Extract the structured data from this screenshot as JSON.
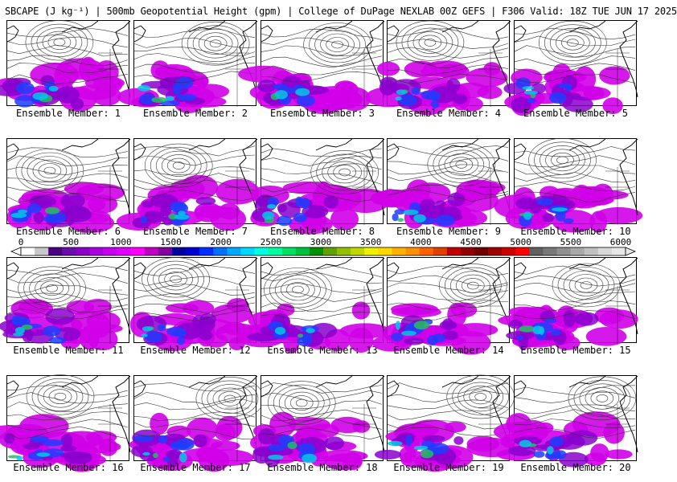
{
  "header": {
    "title": "SBCAPE (J kg⁻¹) | 500mb Geopotential Height (gpm) | College of DuPage NEXLAB 00Z GEFS | F306 Valid: 18Z TUE JUN 17 2025"
  },
  "colorbar": {
    "ticks": [
      "0",
      "500",
      "1000",
      "1500",
      "2000",
      "2500",
      "3000",
      "3500",
      "4000",
      "4500",
      "5000",
      "5500",
      "6000"
    ],
    "colors": [
      "#ffffff",
      "#c8c8c8",
      "#4b0082",
      "#6a0dad",
      "#8b00c8",
      "#a800e0",
      "#c800f0",
      "#e000ff",
      "#ff00ff",
      "#c000c0",
      "#8000a0",
      "#0000a0",
      "#0000d0",
      "#0030ff",
      "#0070ff",
      "#00a8ff",
      "#00d8ff",
      "#00ffe0",
      "#00ffa0",
      "#00e060",
      "#00c040",
      "#009000",
      "#60a000",
      "#90c000",
      "#c0d800",
      "#f0f000",
      "#ffd800",
      "#ffb000",
      "#ff9000",
      "#ff6000",
      "#e04000",
      "#c00000",
      "#900000",
      "#700000",
      "#a00000",
      "#d00000",
      "#ff0000",
      "#606060",
      "#787878",
      "#909090",
      "#a8a8a8",
      "#c0c0c0",
      "#d8d8d8",
      "#e8e8e8"
    ]
  },
  "members": [
    {
      "label": "Ensemble Member: 1"
    },
    {
      "label": "Ensemble Member: 2"
    },
    {
      "label": "Ensemble Member: 3"
    },
    {
      "label": "Ensemble Member: 4"
    },
    {
      "label": "Ensemble Member: 5"
    },
    {
      "label": "Ensemble Member: 6"
    },
    {
      "label": "Ensemble Member: 7"
    },
    {
      "label": "Ensemble Member: 8"
    },
    {
      "label": "Ensemble Member: 9"
    },
    {
      "label": "Ensemble Member: 10"
    },
    {
      "label": "Ensemble Member: 11"
    },
    {
      "label": "Ensemble Member: 12"
    },
    {
      "label": "Ensemble Member: 13"
    },
    {
      "label": "Ensemble Member: 14"
    },
    {
      "label": "Ensemble Member: 15"
    },
    {
      "label": "Ensemble Member: 16"
    },
    {
      "label": "Ensemble Member: 17"
    },
    {
      "label": "Ensemble Member: 18"
    },
    {
      "label": "Ensemble Member: 19"
    },
    {
      "label": "Ensemble Member: 20"
    }
  ],
  "style": {
    "cape_low": "#d000e8",
    "cape_mid": "#8800cc",
    "cape_blue": "#1e3cff",
    "cape_cyan": "#00c8e8",
    "cape_green": "#20c060",
    "contour": "#333333",
    "coast": "#000000"
  }
}
